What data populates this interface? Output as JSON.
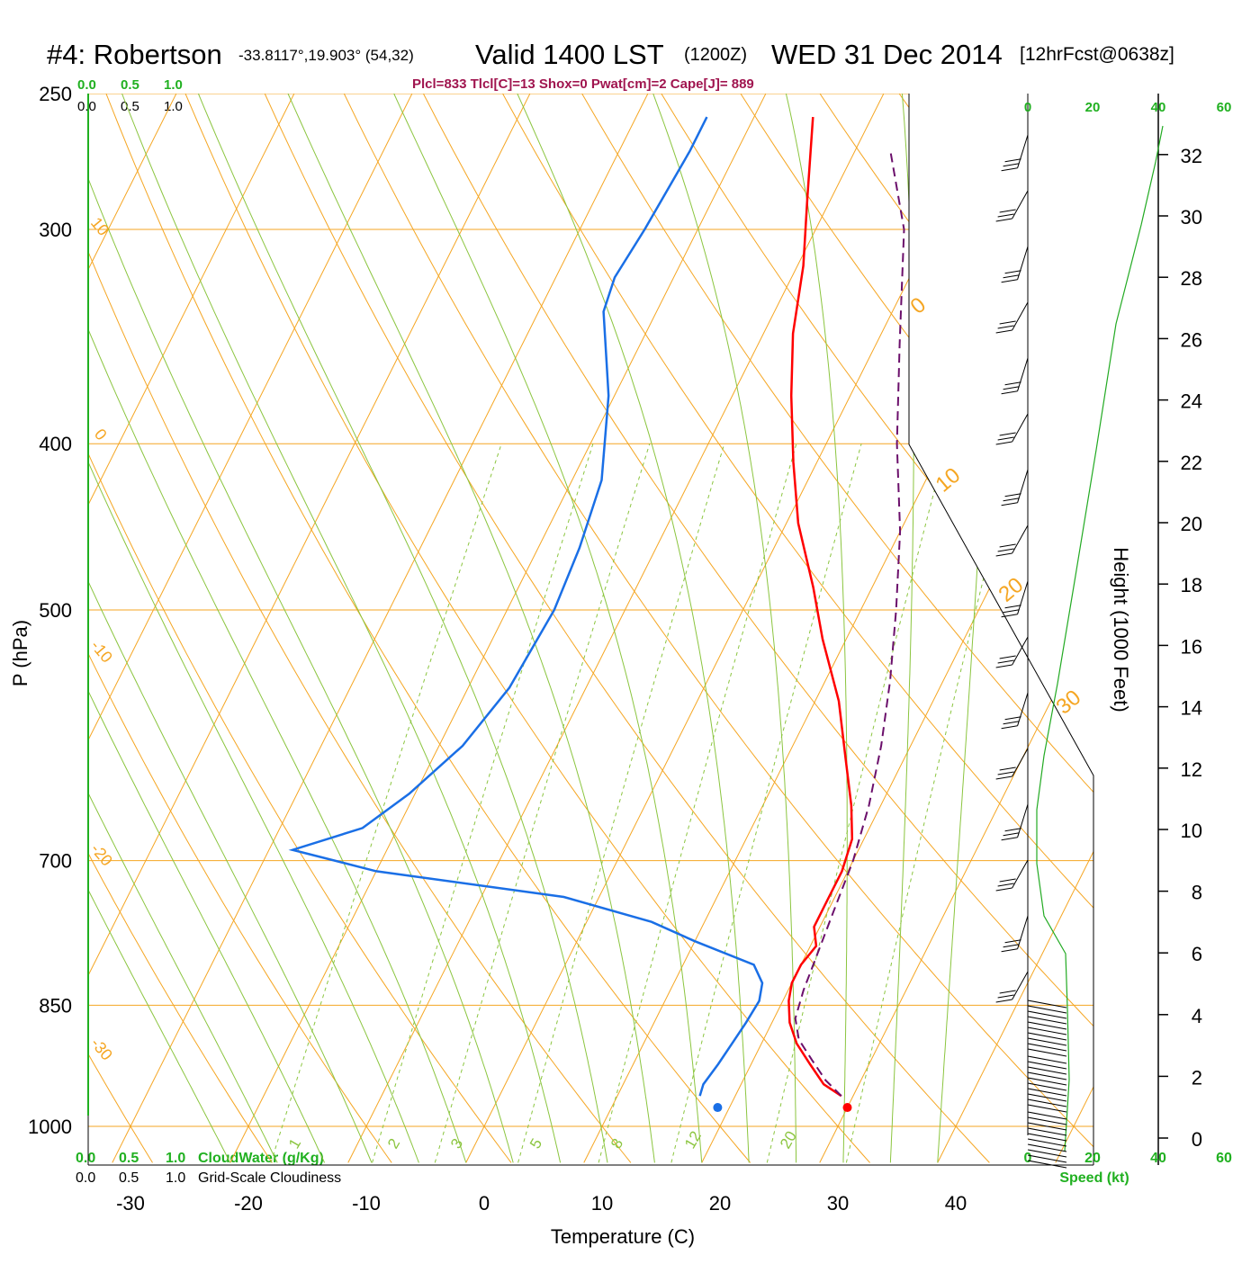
{
  "header": {
    "station": "#4: Robertson",
    "coords": "-33.8117°,19.903° (54,32)",
    "valid": "Valid 1400 LST",
    "utc": "(1200Z)",
    "date": "WED 31 Dec 2014",
    "forecast": "[12hrFcst@0638z]"
  },
  "indices": "Plcl=833 Tlcl[C]=13 Shox=0 Pwat[cm]=2 Cape[J]= 889",
  "colors": {
    "temperature": "#ff0000",
    "dewpoint": "#1a6fe6",
    "parcel": "#6b0f6b",
    "isotherm": "#f5a623",
    "dry_adiabat": "#f5a623",
    "moist_adiabat": "#8bc53f",
    "mixing_ratio": "#8bc53f",
    "speed": "#22aa22",
    "indices_text": "#a0154f",
    "cloud_text": "#20b020"
  },
  "cloud_scale": {
    "top_green": [
      "0.0",
      "0.5",
      "1.0"
    ],
    "top_black": [
      "0.0",
      "0.5",
      "1.0"
    ],
    "bottom_green": [
      "0.0",
      "0.5",
      "1.0"
    ],
    "bottom_black": [
      "0.0",
      "0.5",
      "1.0"
    ],
    "cloudwater_label": "CloudWater (g/Kg)",
    "cloudiness_label": "Grid-Scale Cloudiness"
  },
  "wind_panel": {
    "speed_ticks": [
      "0",
      "20",
      "40",
      "60"
    ],
    "speed_label": "Speed (kt)"
  },
  "height_axis": {
    "label": "Height (1000 Feet)",
    "ticks": [
      "0",
      "2",
      "4",
      "6",
      "8",
      "10",
      "12",
      "14",
      "16",
      "18",
      "20",
      "22",
      "24",
      "26",
      "28",
      "30",
      "32"
    ]
  },
  "chart_data": {
    "type": "line",
    "xlabel": "Temperature (C)",
    "ylabel": "P (hPa)",
    "x_ticks": [
      "-30",
      "-20",
      "-10",
      "0",
      "10",
      "20",
      "30",
      "40"
    ],
    "y_ticks": [
      "250",
      "300",
      "400",
      "500",
      "700",
      "850",
      "1000"
    ],
    "pressure_range": [
      1000,
      250
    ],
    "y_scale": "log",
    "isotherm_labels": [
      "10",
      "0",
      "-10",
      "-20",
      "-30"
    ],
    "dry_adiabat_labels": [
      "0",
      "10",
      "20",
      "30"
    ],
    "moist_adiabat_labels": [
      "20"
    ],
    "mixing_ratio_labels": [
      "1",
      "2",
      "3",
      "5",
      "8",
      "12",
      "20"
    ],
    "surface_temperature_C": 30,
    "surface_dewpoint_C": 19,
    "series": [
      {
        "name": "Temperature",
        "points": [
          [
            29,
            960
          ],
          [
            27,
            945
          ],
          [
            25,
            920
          ],
          [
            23,
            895
          ],
          [
            21.5,
            870
          ],
          [
            20.5,
            845
          ],
          [
            20,
            825
          ],
          [
            20,
            805
          ],
          [
            20.5,
            785
          ],
          [
            19.5,
            765
          ],
          [
            19.5,
            735
          ],
          [
            19.5,
            710
          ],
          [
            19,
            680
          ],
          [
            17.5,
            650
          ],
          [
            15,
            610
          ],
          [
            12,
            565
          ],
          [
            8,
            520
          ],
          [
            5,
            485
          ],
          [
            1,
            445
          ],
          [
            -2,
            410
          ],
          [
            -5,
            375
          ],
          [
            -7.5,
            345
          ],
          [
            -9.5,
            315
          ],
          [
            -12,
            288
          ],
          [
            -15,
            258
          ]
        ]
      },
      {
        "name": "Dewpoint",
        "points": [
          [
            17,
            960
          ],
          [
            16.8,
            945
          ],
          [
            17.2,
            920
          ],
          [
            17.5,
            895
          ],
          [
            17.8,
            870
          ],
          [
            18,
            845
          ],
          [
            17.5,
            825
          ],
          [
            16,
            805
          ],
          [
            10,
            780
          ],
          [
            5.5,
            760
          ],
          [
            -3,
            735
          ],
          [
            -20,
            710
          ],
          [
            -28,
            690
          ],
          [
            -23,
            670
          ],
          [
            -20.5,
            640
          ],
          [
            -18,
            600
          ],
          [
            -16.5,
            555
          ],
          [
            -16,
            500
          ],
          [
            -16.5,
            460
          ],
          [
            -17.5,
            420
          ],
          [
            -20.5,
            375
          ],
          [
            -24.5,
            335
          ],
          [
            -25,
            320
          ],
          [
            -24.5,
            300
          ],
          [
            -24,
            270
          ],
          [
            -24,
            258
          ]
        ]
      },
      {
        "name": "Parcel",
        "points": [
          [
            29,
            960
          ],
          [
            27,
            940
          ],
          [
            25,
            915
          ],
          [
            23,
            890
          ],
          [
            21.8,
            865
          ],
          [
            21.3,
            833
          ],
          [
            21,
            800
          ],
          [
            20.5,
            750
          ],
          [
            20,
            700
          ],
          [
            19,
            650
          ],
          [
            17.5,
            600
          ],
          [
            15.5,
            550
          ],
          [
            13,
            500
          ],
          [
            10,
            450
          ],
          [
            6,
            400
          ],
          [
            2,
            350
          ],
          [
            -2.5,
            300
          ],
          [
            -7,
            270
          ]
        ]
      }
    ]
  }
}
